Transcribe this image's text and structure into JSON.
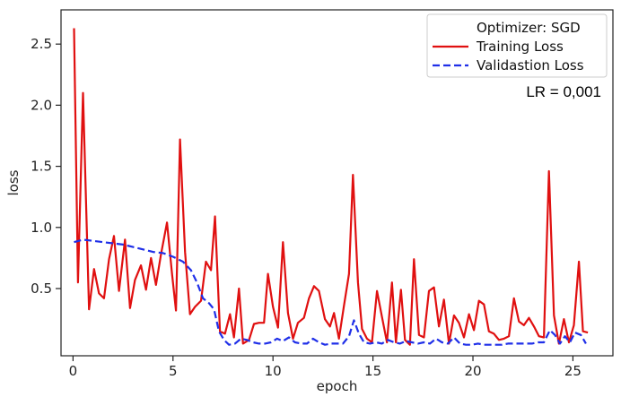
{
  "chart_data": {
    "type": "line",
    "title": "",
    "xlabel": "epoch",
    "ylabel": "loss",
    "xlim": [
      -0.6,
      27
    ],
    "ylim": [
      -0.05,
      2.78
    ],
    "xticks": [
      0,
      5,
      10,
      15,
      20,
      25
    ],
    "yticks": [
      0.5,
      1.0,
      1.5,
      2.0,
      2.5
    ],
    "xtick_labels": [
      "0",
      "5",
      "10",
      "15",
      "20",
      "25"
    ],
    "ytick_labels": [
      "0.5",
      "1.0",
      "1.5",
      "2.0",
      "2.5"
    ],
    "grid": false,
    "legend": {
      "placement": "top-right",
      "title": "Optimizer: SGD",
      "entries": [
        "Training Loss",
        "Validastion Loss"
      ]
    },
    "annotation": "LR = 0,001",
    "series": [
      {
        "name": "Training Loss",
        "color": "#e01010",
        "style": "solid",
        "points": [
          [
            0.05,
            2.63
          ],
          [
            0.25,
            0.55
          ],
          [
            0.5,
            2.1
          ],
          [
            0.8,
            0.33
          ],
          [
            1.05,
            0.66
          ],
          [
            1.3,
            0.46
          ],
          [
            1.55,
            0.42
          ],
          [
            1.8,
            0.74
          ],
          [
            2.05,
            0.93
          ],
          [
            2.3,
            0.48
          ],
          [
            2.6,
            0.9
          ],
          [
            2.85,
            0.34
          ],
          [
            3.1,
            0.57
          ],
          [
            3.4,
            0.69
          ],
          [
            3.65,
            0.49
          ],
          [
            3.9,
            0.75
          ],
          [
            4.15,
            0.53
          ],
          [
            4.4,
            0.78
          ],
          [
            4.7,
            1.04
          ],
          [
            4.95,
            0.62
          ],
          [
            5.15,
            0.32
          ],
          [
            5.35,
            1.72
          ],
          [
            5.6,
            0.8
          ],
          [
            5.85,
            0.29
          ],
          [
            6.1,
            0.35
          ],
          [
            6.4,
            0.4
          ],
          [
            6.65,
            0.72
          ],
          [
            6.9,
            0.65
          ],
          [
            7.1,
            1.09
          ],
          [
            7.35,
            0.15
          ],
          [
            7.6,
            0.13
          ],
          [
            7.85,
            0.29
          ],
          [
            8.05,
            0.1
          ],
          [
            8.3,
            0.5
          ],
          [
            8.5,
            0.05
          ],
          [
            8.8,
            0.08
          ],
          [
            9.05,
            0.21
          ],
          [
            9.3,
            0.22
          ],
          [
            9.55,
            0.22
          ],
          [
            9.75,
            0.62
          ],
          [
            10.0,
            0.35
          ],
          [
            10.25,
            0.18
          ],
          [
            10.5,
            0.88
          ],
          [
            10.75,
            0.3
          ],
          [
            11.0,
            0.09
          ],
          [
            11.25,
            0.22
          ],
          [
            11.55,
            0.26
          ],
          [
            11.8,
            0.42
          ],
          [
            12.05,
            0.52
          ],
          [
            12.3,
            0.48
          ],
          [
            12.6,
            0.25
          ],
          [
            12.85,
            0.19
          ],
          [
            13.05,
            0.3
          ],
          [
            13.3,
            0.09
          ],
          [
            13.55,
            0.36
          ],
          [
            13.8,
            0.62
          ],
          [
            14.0,
            1.43
          ],
          [
            14.25,
            0.55
          ],
          [
            14.45,
            0.17
          ],
          [
            14.7,
            0.09
          ],
          [
            14.95,
            0.06
          ],
          [
            15.2,
            0.48
          ],
          [
            15.45,
            0.27
          ],
          [
            15.7,
            0.06
          ],
          [
            15.95,
            0.55
          ],
          [
            16.15,
            0.06
          ],
          [
            16.4,
            0.49
          ],
          [
            16.6,
            0.08
          ],
          [
            16.85,
            0.04
          ],
          [
            17.05,
            0.74
          ],
          [
            17.3,
            0.12
          ],
          [
            17.55,
            0.1
          ],
          [
            17.8,
            0.48
          ],
          [
            18.05,
            0.51
          ],
          [
            18.3,
            0.19
          ],
          [
            18.55,
            0.41
          ],
          [
            18.8,
            0.05
          ],
          [
            19.05,
            0.28
          ],
          [
            19.3,
            0.22
          ],
          [
            19.55,
            0.1
          ],
          [
            19.8,
            0.29
          ],
          [
            20.05,
            0.16
          ],
          [
            20.3,
            0.4
          ],
          [
            20.55,
            0.37
          ],
          [
            20.8,
            0.15
          ],
          [
            21.05,
            0.13
          ],
          [
            21.3,
            0.08
          ],
          [
            21.55,
            0.09
          ],
          [
            21.8,
            0.11
          ],
          [
            22.05,
            0.42
          ],
          [
            22.3,
            0.23
          ],
          [
            22.55,
            0.2
          ],
          [
            22.8,
            0.26
          ],
          [
            23.05,
            0.19
          ],
          [
            23.3,
            0.11
          ],
          [
            23.55,
            0.1
          ],
          [
            23.8,
            1.46
          ],
          [
            24.05,
            0.28
          ],
          [
            24.3,
            0.05
          ],
          [
            24.55,
            0.25
          ],
          [
            24.8,
            0.06
          ],
          [
            25.05,
            0.2
          ],
          [
            25.3,
            0.72
          ],
          [
            25.5,
            0.15
          ],
          [
            25.75,
            0.14
          ]
        ]
      },
      {
        "name": "Validastion Loss",
        "color": "#1f2fe8",
        "style": "dashed",
        "points": [
          [
            0.05,
            0.88
          ],
          [
            0.5,
            0.9
          ],
          [
            1.0,
            0.89
          ],
          [
            1.5,
            0.88
          ],
          [
            2.0,
            0.87
          ],
          [
            2.5,
            0.86
          ],
          [
            3.0,
            0.84
          ],
          [
            3.5,
            0.82
          ],
          [
            4.0,
            0.8
          ],
          [
            4.5,
            0.79
          ],
          [
            5.0,
            0.76
          ],
          [
            5.5,
            0.72
          ],
          [
            5.9,
            0.65
          ],
          [
            6.2,
            0.55
          ],
          [
            6.5,
            0.42
          ],
          [
            6.8,
            0.38
          ],
          [
            7.05,
            0.33
          ],
          [
            7.3,
            0.15
          ],
          [
            7.55,
            0.08
          ],
          [
            7.8,
            0.04
          ],
          [
            8.1,
            0.05
          ],
          [
            8.4,
            0.09
          ],
          [
            8.7,
            0.08
          ],
          [
            9.0,
            0.06
          ],
          [
            9.3,
            0.05
          ],
          [
            9.6,
            0.05
          ],
          [
            9.9,
            0.06
          ],
          [
            10.2,
            0.09
          ],
          [
            10.5,
            0.07
          ],
          [
            10.8,
            0.1
          ],
          [
            11.1,
            0.06
          ],
          [
            11.4,
            0.05
          ],
          [
            11.7,
            0.05
          ],
          [
            12.0,
            0.09
          ],
          [
            12.3,
            0.06
          ],
          [
            12.6,
            0.04
          ],
          [
            12.9,
            0.05
          ],
          [
            13.2,
            0.05
          ],
          [
            13.5,
            0.05
          ],
          [
            13.8,
            0.11
          ],
          [
            14.05,
            0.24
          ],
          [
            14.3,
            0.13
          ],
          [
            14.55,
            0.06
          ],
          [
            14.85,
            0.05
          ],
          [
            15.15,
            0.06
          ],
          [
            15.45,
            0.05
          ],
          [
            15.75,
            0.08
          ],
          [
            16.05,
            0.06
          ],
          [
            16.35,
            0.05
          ],
          [
            16.65,
            0.07
          ],
          [
            16.95,
            0.06
          ],
          [
            17.25,
            0.05
          ],
          [
            17.55,
            0.06
          ],
          [
            17.85,
            0.05
          ],
          [
            18.15,
            0.09
          ],
          [
            18.45,
            0.06
          ],
          [
            18.75,
            0.05
          ],
          [
            19.05,
            0.1
          ],
          [
            19.35,
            0.05
          ],
          [
            19.65,
            0.04
          ],
          [
            19.95,
            0.04
          ],
          [
            20.25,
            0.05
          ],
          [
            20.55,
            0.04
          ],
          [
            20.85,
            0.04
          ],
          [
            21.15,
            0.04
          ],
          [
            21.45,
            0.04
          ],
          [
            21.75,
            0.05
          ],
          [
            22.05,
            0.05
          ],
          [
            22.35,
            0.05
          ],
          [
            22.65,
            0.05
          ],
          [
            22.95,
            0.05
          ],
          [
            23.25,
            0.06
          ],
          [
            23.55,
            0.06
          ],
          [
            23.85,
            0.16
          ],
          [
            24.1,
            0.12
          ],
          [
            24.35,
            0.05
          ],
          [
            24.6,
            0.11
          ],
          [
            24.85,
            0.06
          ],
          [
            25.1,
            0.14
          ],
          [
            25.4,
            0.12
          ],
          [
            25.65,
            0.05
          ]
        ]
      }
    ]
  }
}
